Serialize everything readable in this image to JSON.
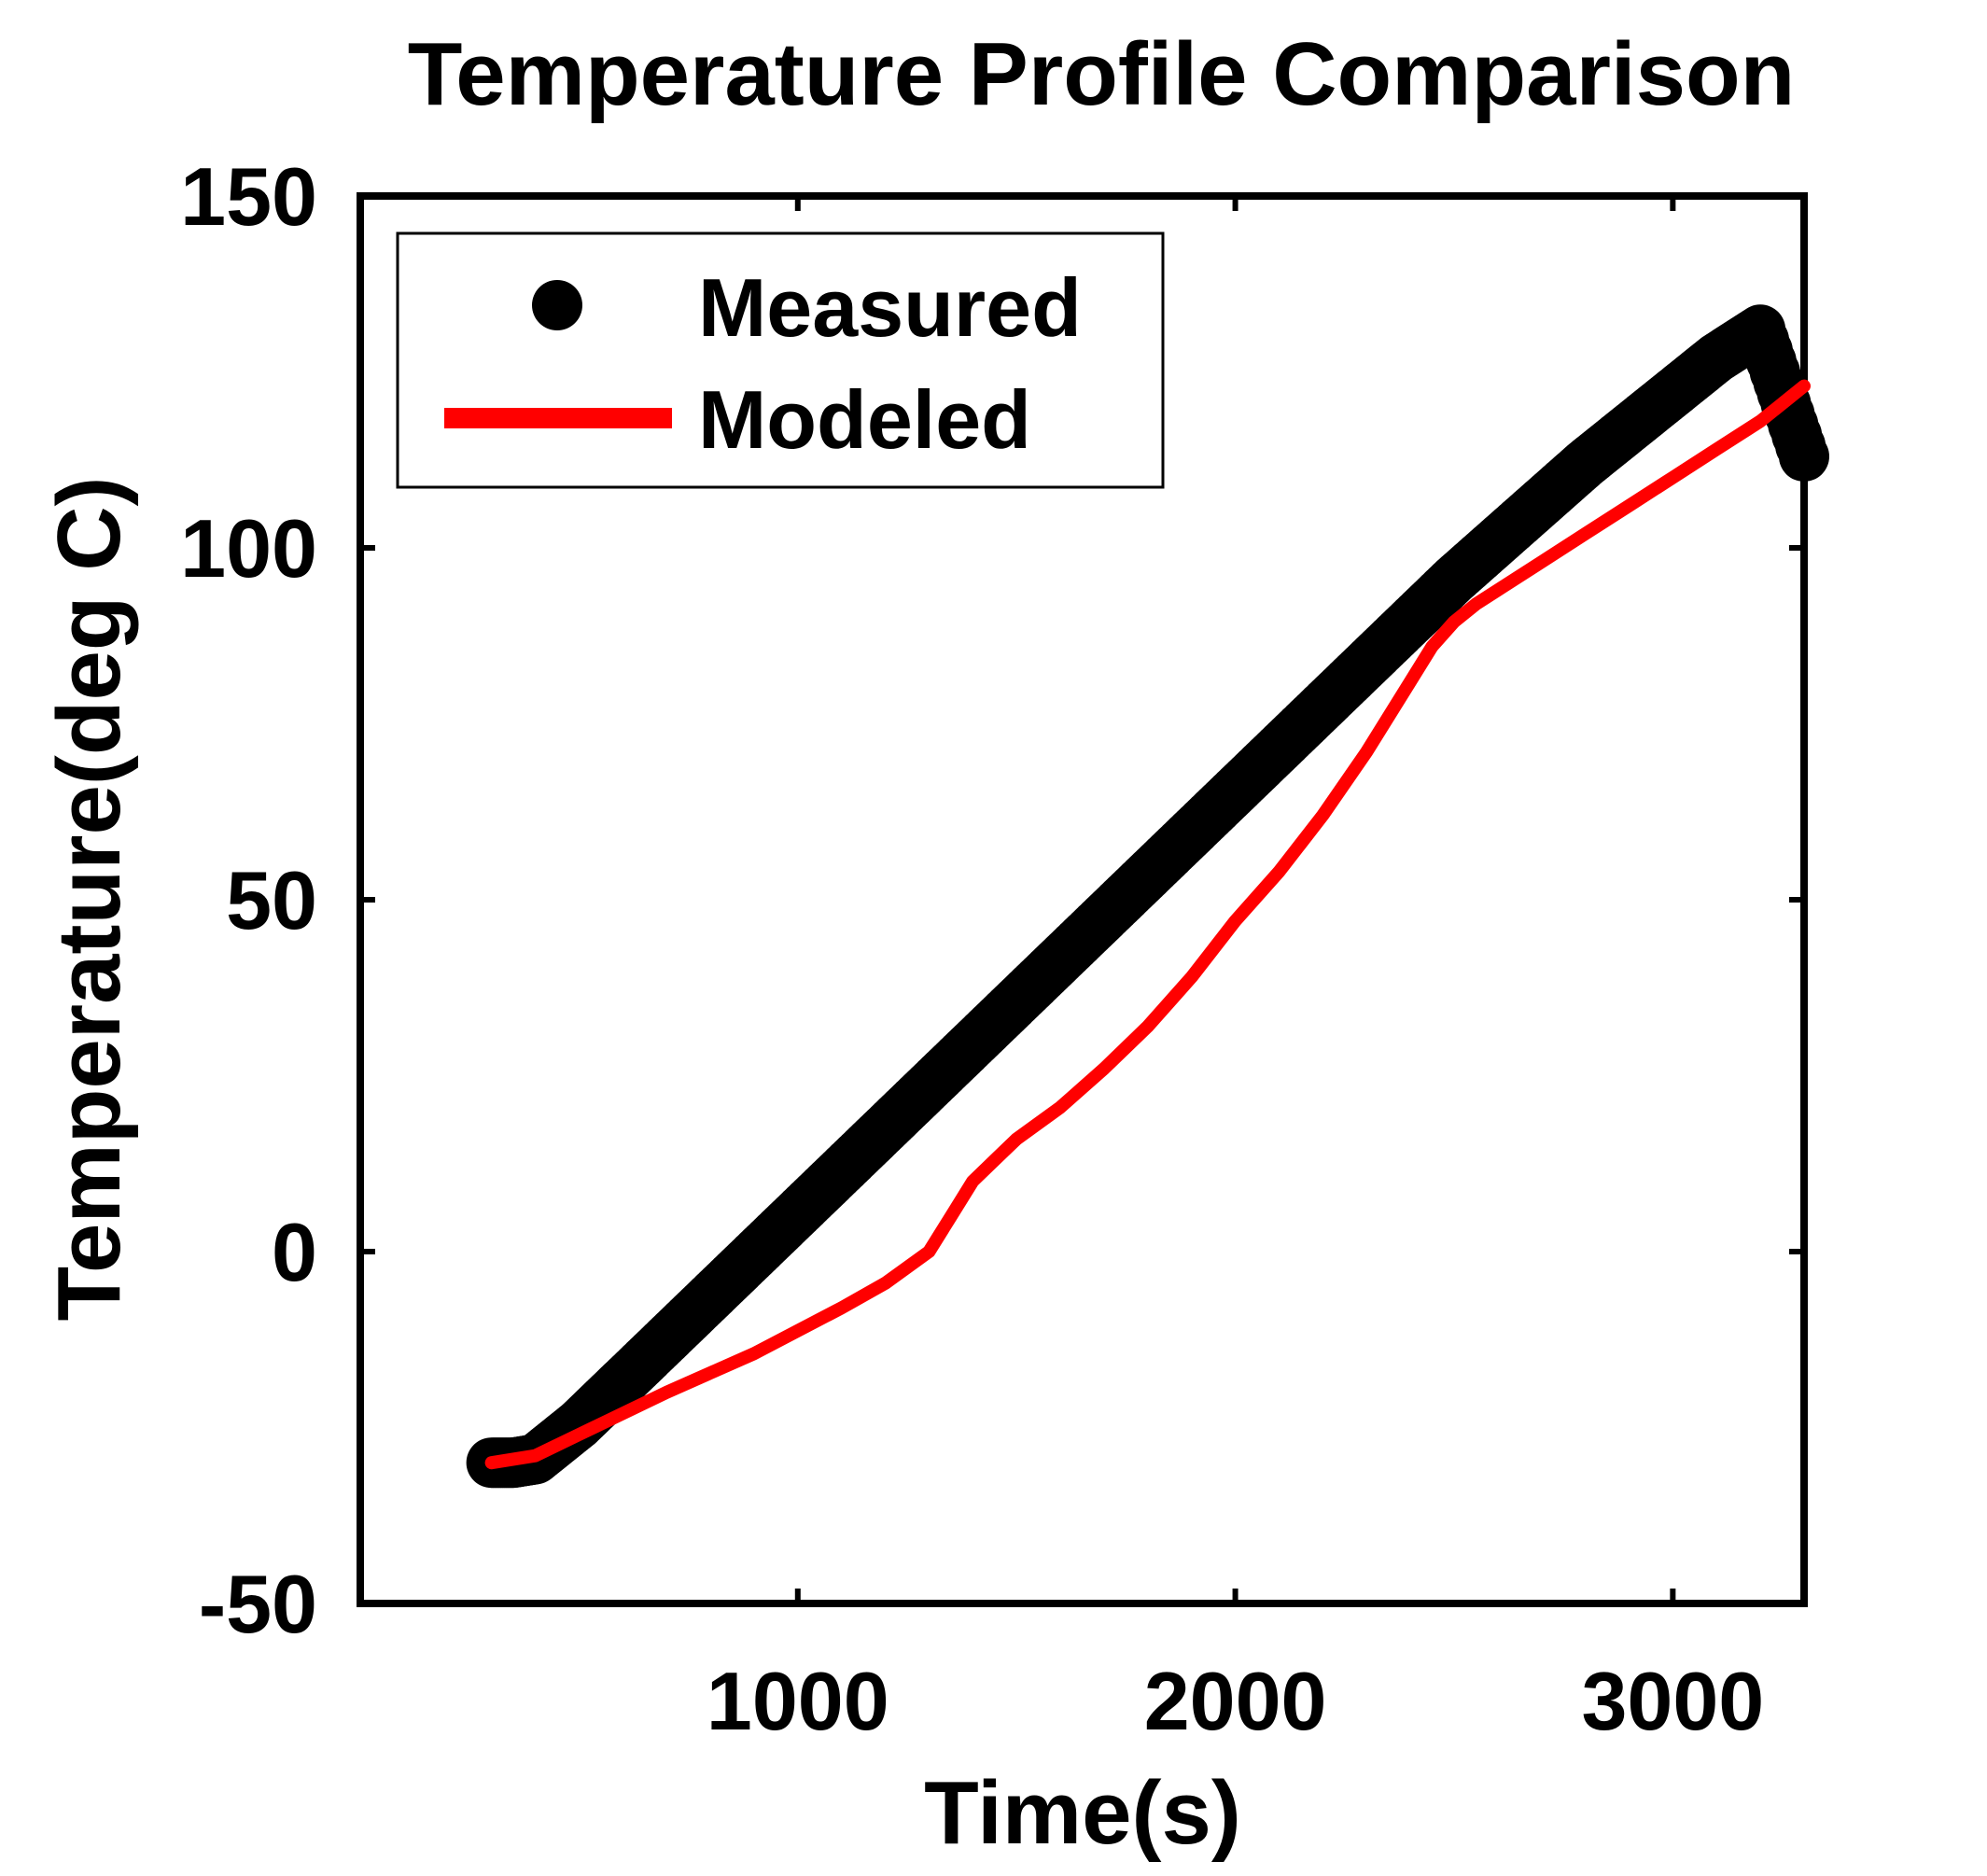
{
  "chart_data": {
    "type": "line",
    "title": "Temperature Profile Comparison",
    "xlabel": "Time(s)",
    "ylabel": "Temperature(deg C)",
    "xlim": [
      0,
      3300
    ],
    "ylim": [
      -50,
      150
    ],
    "xticks": [
      1000,
      2000,
      3000
    ],
    "xtick_labels": [
      "1000",
      "2000",
      "3000"
    ],
    "yticks": [
      -50,
      0,
      50,
      100,
      150
    ],
    "ytick_labels": [
      "-50",
      "0",
      "50",
      "100",
      "150"
    ],
    "grid": false,
    "legend_position": "top-left",
    "series": [
      {
        "name": "Measured",
        "style": "markers",
        "color": "#000000",
        "x": [
          300,
          350,
          400,
          450,
          500,
          550,
          600,
          700,
          800,
          900,
          1000,
          1100,
          1200,
          1300,
          1400,
          1500,
          1600,
          1700,
          1800,
          1900,
          2000,
          2100,
          2200,
          2300,
          2400,
          2500,
          2600,
          2700,
          2800,
          2900,
          3000,
          3100,
          3200,
          3300
        ],
        "y": [
          -30,
          -30,
          -29.5,
          -27,
          -24.5,
          -21.5,
          -18.5,
          -12.5,
          -6.5,
          -0.5,
          5.5,
          11.5,
          17.5,
          23.5,
          29.5,
          35.5,
          41.5,
          47.5,
          53.5,
          59.5,
          65.5,
          71.5,
          77.5,
          83.5,
          89.5,
          95.5,
          101,
          106.5,
          112,
          117,
          122,
          127,
          131,
          113
        ]
      },
      {
        "name": "Modeled",
        "style": "line",
        "color": "#ff0000",
        "x": [
          300,
          400,
          500,
          700,
          900,
          1100,
          1200,
          1300,
          1350,
          1400,
          1450,
          1500,
          1600,
          1700,
          1800,
          1900,
          2000,
          2100,
          2200,
          2300,
          2400,
          2450,
          2500,
          2550,
          2600,
          2700,
          2800,
          2900,
          3000,
          3100,
          3200,
          3300
        ],
        "y": [
          -30,
          -29,
          -26,
          -20,
          -14.5,
          -8,
          -4.5,
          0,
          5,
          10,
          13,
          16,
          20.5,
          26,
          32,
          39,
          47,
          54,
          62,
          71,
          81,
          86,
          89.5,
          92,
          94,
          98,
          102,
          106,
          110,
          114,
          118,
          123
        ]
      }
    ]
  }
}
